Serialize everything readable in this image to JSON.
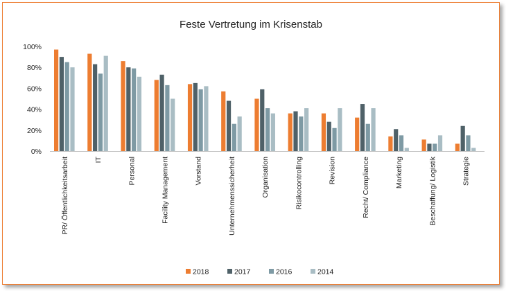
{
  "chart_data": {
    "type": "bar",
    "title": "Feste Vertretung im Krisenstab",
    "xlabel": "",
    "ylabel": "",
    "ylim": [
      0,
      100
    ],
    "yticks": [
      "0%",
      "20%",
      "40%",
      "60%",
      "80%",
      "100%"
    ],
    "grid": false,
    "legend_position": "bottom",
    "categories": [
      "PR/ Öffentlichkeitsarbeit",
      "IT",
      "Personal",
      "Facility Management",
      "Vorstand",
      "Unternehmenssicherheit",
      "Organisation",
      "Risikocontrolling",
      "Revision",
      "Recht/ Compliance",
      "Marketing",
      "Beschaffung/ Logistik",
      "Strategie"
    ],
    "series": [
      {
        "name": "2018",
        "color": "#ed7d31",
        "values": [
          97,
          93,
          86,
          68,
          64,
          57,
          50,
          36,
          36,
          32,
          14,
          11,
          7
        ]
      },
      {
        "name": "2017",
        "color": "#4f6168",
        "values": [
          90,
          83,
          80,
          73,
          65,
          48,
          59,
          38,
          28,
          45,
          21,
          7,
          24
        ]
      },
      {
        "name": "2016",
        "color": "#7e9aa4",
        "values": [
          85,
          74,
          79,
          63,
          59,
          26,
          41,
          33,
          22,
          26,
          15,
          7,
          15
        ]
      },
      {
        "name": "2014",
        "color": "#a9bdc4",
        "values": [
          80,
          91,
          71,
          50,
          62,
          33,
          36,
          41,
          41,
          41,
          3,
          15,
          3
        ]
      }
    ]
  }
}
